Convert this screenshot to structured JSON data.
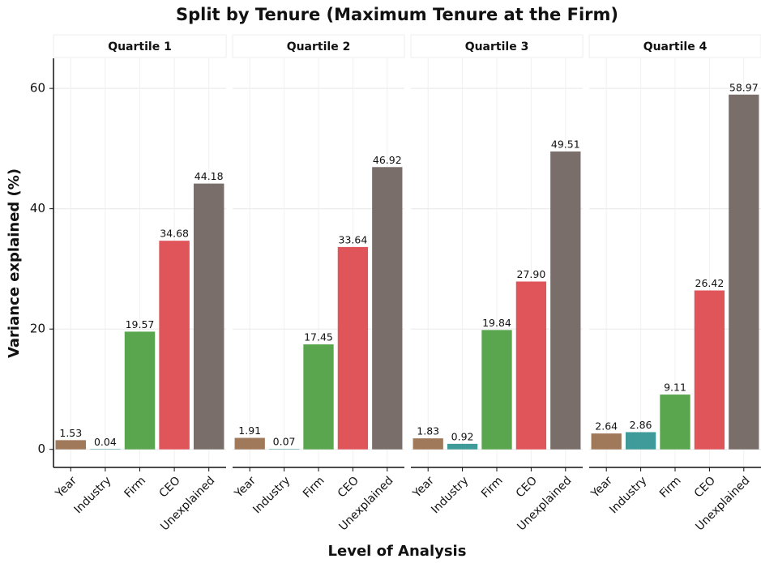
{
  "title": "Split by Tenure (Maximum Tenure at the Firm)",
  "x_label": "Level of Analysis",
  "y_label": "Variance explained (%)",
  "ylim": [
    -3,
    65
  ],
  "yticks": [
    0,
    20,
    40,
    60
  ],
  "grid": true,
  "colors": [
    "#a0785a",
    "#3f9a9a",
    "#5aa64e",
    "#e0555a",
    "#7a6e6a"
  ],
  "chart_data": [
    {
      "type": "bar",
      "title": "Quartile 1",
      "categories": [
        "Year",
        "Industry",
        "Firm",
        "CEO",
        "Unexplained"
      ],
      "values": [
        1.53,
        0.04,
        19.57,
        34.68,
        44.18
      ]
    },
    {
      "type": "bar",
      "title": "Quartile 2",
      "categories": [
        "Year",
        "Industry",
        "Firm",
        "CEO",
        "Unexplained"
      ],
      "values": [
        1.91,
        0.07,
        17.45,
        33.64,
        46.92
      ]
    },
    {
      "type": "bar",
      "title": "Quartile 3",
      "categories": [
        "Year",
        "Industry",
        "Firm",
        "CEO",
        "Unexplained"
      ],
      "values": [
        1.83,
        0.92,
        19.84,
        27.9,
        49.51
      ],
      "value_labels": [
        "1.83",
        "0.92",
        "19.84",
        "27.90",
        "49.51"
      ]
    },
    {
      "type": "bar",
      "title": "Quartile 4",
      "categories": [
        "Year",
        "Industry",
        "Firm",
        "CEO",
        "Unexplained"
      ],
      "values": [
        2.64,
        2.86,
        9.11,
        26.42,
        58.97
      ]
    }
  ]
}
